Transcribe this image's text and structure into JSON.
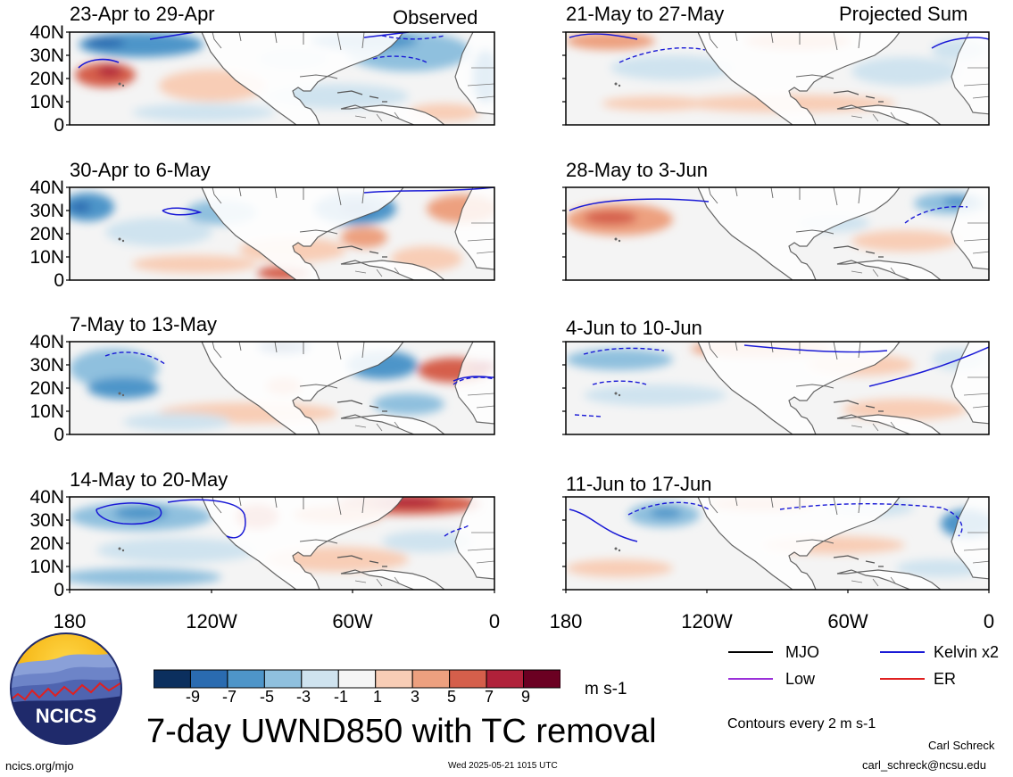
{
  "columns": {
    "observed": "Observed",
    "projected": "Projected Sum"
  },
  "panels": {
    "left": [
      "23-Apr to 29-Apr",
      "30-Apr to 6-May",
      "7-May to 13-May",
      "14-May to 20-May"
    ],
    "right": [
      "21-May to 27-May",
      "28-May to 3-Jun",
      "4-Jun to 10-Jun",
      "11-Jun to 17-Jun"
    ]
  },
  "lat_labels": [
    "40N",
    "30N",
    "20N",
    "10N",
    "0"
  ],
  "lon_labels": [
    "180",
    "120W",
    "60W",
    "0"
  ],
  "colorbar": {
    "ticks": [
      "-9",
      "-7",
      "-5",
      "-3",
      "-1",
      "1",
      "3",
      "5",
      "7",
      "9"
    ],
    "units": "m s-1",
    "colors": [
      "#0b2f5e",
      "#2a6bb0",
      "#4e95c9",
      "#8fc0de",
      "#cfe3ef",
      "#f5f5f5",
      "#f8cdb6",
      "#eda07f",
      "#d55f4b",
      "#b0213a",
      "#6b0022"
    ]
  },
  "title": "7-day UWND850 with TC removal",
  "legend": {
    "items": [
      {
        "label": "MJO",
        "color": "#000000"
      },
      {
        "label": "Kelvin x2",
        "color": "#1a1ad6"
      },
      {
        "label": "Low",
        "color": "#9b30d9"
      },
      {
        "label": "ER",
        "color": "#e02020"
      }
    ],
    "contours_note": "Contours every 2 m s-1"
  },
  "logo": {
    "text": "NCICS"
  },
  "footer": {
    "url": "ncics.org/mjo",
    "timestamp": "Wed 2025-05-21 1015 UTC",
    "author": "Carl Schreck",
    "email": "carl_schreck@ncsu.edu"
  }
}
